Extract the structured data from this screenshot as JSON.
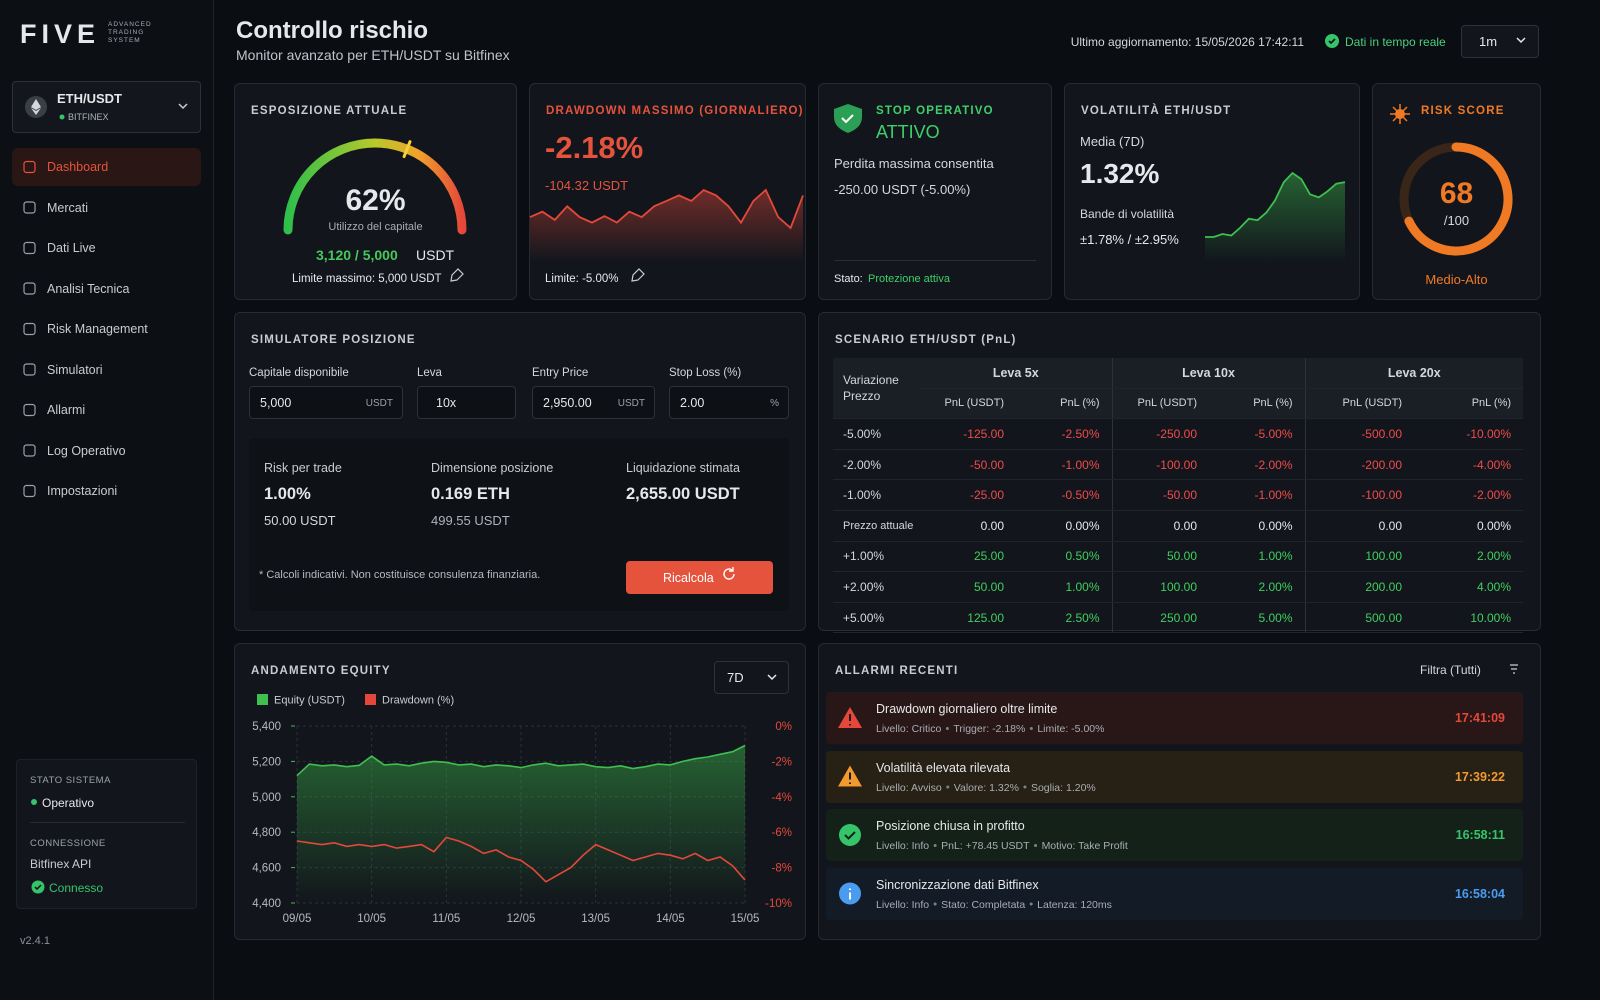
{
  "brand": {
    "logo": "FIVE",
    "tagline": [
      "ADVANCED",
      "TRADING",
      "SYSTEM"
    ]
  },
  "pair_selector": {
    "pair": "ETH/USDT",
    "exchange": "BITFINEX"
  },
  "nav": [
    {
      "label": "Dashboard",
      "active": true
    },
    {
      "label": "Mercati"
    },
    {
      "label": "Dati Live"
    },
    {
      "label": "Analisi Tecnica"
    },
    {
      "label": "Risk Management"
    },
    {
      "label": "Simulatori"
    },
    {
      "label": "Allarmi"
    },
    {
      "label": "Log Operativo"
    },
    {
      "label": "Impostazioni"
    }
  ],
  "system": {
    "status_title": "STATO SISTEMA",
    "status": "Operativo",
    "connection_title": "CONNESSIONE",
    "connection": "Bitfinex API",
    "connection_status": "Connesso"
  },
  "version": "v2.4.1",
  "header": {
    "title": "Controllo rischio",
    "subtitle": "Monitor avanzato per ETH/USDT su Bitfinex",
    "last_update": "Ultimo aggiornamento: 15/05/2026 17:42:11",
    "live": "Dati in tempo reale",
    "interval": "1m"
  },
  "exposure": {
    "title": "ESPOSIZIONE ATTUALE",
    "gauge_value": 62,
    "gauge_range": [
      0,
      100
    ],
    "value_label": "62%",
    "caption": "Utilizzo del capitale",
    "used": "3,120 / 5,000",
    "unit": "USDT",
    "limit": "Limite massimo: 5,000 USDT"
  },
  "drawdown": {
    "title": "DRAWDOWN MASSIMO (GIORNALIERO)",
    "value": "-2.18%",
    "amount": "-104.32 USDT",
    "limit": "Limite: -5.00%",
    "spark": [
      3,
      4,
      2.5,
      5,
      3,
      2,
      3.2,
      2,
      4,
      3,
      5,
      6,
      7,
      6,
      8,
      7,
      5,
      2,
      6,
      8,
      3,
      1,
      7
    ]
  },
  "stop": {
    "title": "STOP OPERATIVO",
    "state": "ATTIVO",
    "label": "Perdita massima consentita",
    "value": "-250.00 USDT (-5.00%)",
    "status_label": "Stato:",
    "status": "Protezione attiva"
  },
  "volatility": {
    "title": "VOLATILITÀ ETH/USDT",
    "period": "Media (7D)",
    "value": "1.32%",
    "bands_label": "Bande di volatilità",
    "bands": "±1.78% / ±2.95%",
    "spark": [
      1,
      1,
      1.2,
      1.1,
      1.6,
      2.2,
      2.1,
      2.6,
      3.4,
      4.6,
      5.2,
      4.8,
      3.8,
      3.6,
      4.0,
      4.5,
      4.6
    ]
  },
  "risk": {
    "title": "RISK SCORE",
    "value": 68,
    "range": [
      0,
      100
    ],
    "max_label": "/100",
    "level": "Medio-Alto"
  },
  "simulator": {
    "title": "SIMULATORE POSIZIONE",
    "fields": [
      {
        "label": "Capitale disponibile",
        "value": "5,000",
        "unit": "USDT"
      },
      {
        "label": "Leva",
        "value": "10x"
      },
      {
        "label": "Entry Price",
        "value": "2,950.00",
        "unit": "USDT"
      },
      {
        "label": "Stop Loss (%)",
        "value": "2.00",
        "unit": "%"
      }
    ],
    "results": [
      {
        "label": "Risk per trade",
        "value": "1.00%",
        "sub": "50.00 USDT"
      },
      {
        "label": "Dimensione posizione",
        "value": "0.169 ETH",
        "sub": "499.55 USDT"
      },
      {
        "label": "Liquidazione stimata",
        "value": "2,655.00 USDT"
      }
    ],
    "note": "* Calcoli indicativi. Non costituisce consulenza finanziaria.",
    "button": "Ricalcola"
  },
  "scenario": {
    "title": "SCENARIO ETH/USDT (PnL)",
    "row_header": "Variazione Prezzo",
    "groups": [
      "Leva 5x",
      "Leva 10x",
      "Leva 20x"
    ],
    "subheaders": [
      "PnL (USDT)",
      "PnL (%)"
    ],
    "rows": [
      {
        "label": "-5.00%",
        "cells": [
          "-125.00",
          "-2.50%",
          "-250.00",
          "-5.00%",
          "-500.00",
          "-10.00%"
        ]
      },
      {
        "label": "-2.00%",
        "cells": [
          "-50.00",
          "-1.00%",
          "-100.00",
          "-2.00%",
          "-200.00",
          "-4.00%"
        ]
      },
      {
        "label": "-1.00%",
        "cells": [
          "-25.00",
          "-0.50%",
          "-50.00",
          "-1.00%",
          "-100.00",
          "-2.00%"
        ]
      },
      {
        "label": "Prezzo attuale",
        "cells": [
          "0.00",
          "0.00%",
          "0.00",
          "0.00%",
          "0.00",
          "0.00%"
        ]
      },
      {
        "label": "+1.00%",
        "cells": [
          "25.00",
          "0.50%",
          "50.00",
          "1.00%",
          "100.00",
          "2.00%"
        ]
      },
      {
        "label": "+2.00%",
        "cells": [
          "50.00",
          "1.00%",
          "100.00",
          "2.00%",
          "200.00",
          "4.00%"
        ]
      },
      {
        "label": "+5.00%",
        "cells": [
          "125.00",
          "2.50%",
          "250.00",
          "5.00%",
          "500.00",
          "10.00%"
        ]
      }
    ]
  },
  "chart_data": {
    "type": "line",
    "title": "ANDAMENTO EQUITY",
    "period": "7D",
    "legend": "top-left",
    "grid": true,
    "categories": [
      "09/05",
      null,
      null,
      null,
      null,
      null,
      "10/05",
      null,
      null,
      null,
      null,
      null,
      "11/05",
      null,
      null,
      null,
      null,
      null,
      "12/05",
      null,
      null,
      null,
      null,
      null,
      "13/05",
      null,
      null,
      null,
      null,
      null,
      "14/05",
      null,
      null,
      null,
      null,
      null,
      "15/05"
    ],
    "series": [
      {
        "name": "Equity (USDT)",
        "color": "#3fbf4f",
        "axis": "y",
        "values": [
          5120,
          5185,
          5175,
          5180,
          5170,
          5178,
          5230,
          5180,
          5185,
          5175,
          5190,
          5200,
          5195,
          5180,
          5185,
          5170,
          5180,
          5175,
          5165,
          5180,
          5190,
          5175,
          5180,
          5185,
          5170,
          5165,
          5175,
          5160,
          5170,
          5185,
          5180,
          5200,
          5215,
          5225,
          5240,
          5255,
          5290
        ]
      },
      {
        "name": "Drawdown (%)",
        "color": "#e5483a",
        "axis": "y2",
        "values": [
          -6.5,
          -6.6,
          -6.7,
          -6.6,
          -6.8,
          -6.7,
          -6.8,
          -6.7,
          -6.9,
          -6.8,
          -6.7,
          -7.1,
          -6.3,
          -6.5,
          -6.8,
          -7.2,
          -7.0,
          -7.4,
          -7.6,
          -8.1,
          -8.8,
          -8.4,
          -8.0,
          -7.3,
          -6.7,
          -7.0,
          -7.3,
          -7.6,
          -7.4,
          -7.2,
          -7.3,
          -7.5,
          -7.2,
          -7.6,
          -7.4,
          -7.9,
          -8.7
        ]
      }
    ],
    "ylim": [
      4400,
      5400
    ],
    "yticks": [
      {
        "value": 5400,
        "label": "5,400"
      },
      {
        "value": 5200,
        "label": "5,200"
      },
      {
        "value": 5000,
        "label": "5,000"
      },
      {
        "value": 4800,
        "label": "4,800"
      },
      {
        "value": 4600,
        "label": "4,600"
      },
      {
        "value": 4400,
        "label": "4,400"
      }
    ],
    "y2lim": [
      -10,
      0
    ],
    "y2ticks": [
      {
        "value": 0,
        "label": "0%"
      },
      {
        "value": -2,
        "label": "-2%"
      },
      {
        "value": -4,
        "label": "-4%"
      },
      {
        "value": -6,
        "label": "-6%"
      },
      {
        "value": -8,
        "label": "-8%"
      },
      {
        "value": -10,
        "label": "-10%"
      }
    ]
  },
  "alarms": {
    "title": "ALLARMI RECENTI",
    "filter": "Filtra (Tutti)",
    "items": [
      {
        "title": "Drawdown giornaliero oltre limite",
        "details": [
          "Livello: Critico",
          "Trigger: -2.18%",
          "Limite: -5.00%"
        ],
        "time": "17:41:09",
        "color": "#e5483a",
        "icon": "warning"
      },
      {
        "title": "Volatilità elevata rilevata",
        "details": [
          "Livello: Avviso",
          "Valore: 1.32%",
          "Soglia: 1.20%"
        ],
        "time": "17:39:22",
        "color": "#f29a2e",
        "icon": "warning"
      },
      {
        "title": "Posizione chiusa in profitto",
        "details": [
          "Livello: Info",
          "PnL: +78.45 USDT",
          "Motivo: Take Profit"
        ],
        "time": "16:58:11",
        "color": "#35c46a",
        "icon": "check"
      },
      {
        "title": "Sincronizzazione dati Bitfinex",
        "details": [
          "Livello: Info",
          "Stato: Completata",
          "Latenza: 120ms"
        ],
        "time": "16:58:04",
        "color": "#4a9cf0",
        "icon": "info"
      }
    ]
  }
}
